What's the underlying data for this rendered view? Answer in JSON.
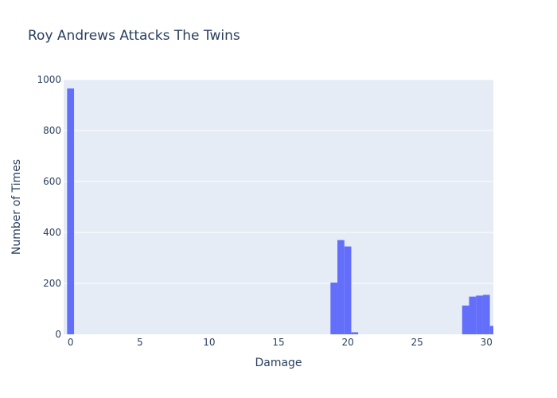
{
  "chart_data": {
    "type": "bar",
    "title": "Roy Andrews Attacks The Twins",
    "xlabel": "Damage",
    "ylabel": "Number of Times",
    "xlim": [
      -0.5,
      30.5
    ],
    "ylim": [
      0,
      1000
    ],
    "bin_width": 0.5,
    "x_ticks": [
      0,
      5,
      10,
      15,
      20,
      25,
      30
    ],
    "y_ticks": [
      0,
      200,
      400,
      600,
      800,
      1000
    ],
    "bins": [
      {
        "x": 0,
        "count": 965
      },
      {
        "x": 19,
        "count": 203
      },
      {
        "x": 19.5,
        "count": 370
      },
      {
        "x": 20,
        "count": 345
      },
      {
        "x": 20.5,
        "count": 8
      },
      {
        "x": 28.5,
        "count": 113
      },
      {
        "x": 29,
        "count": 148
      },
      {
        "x": 29.5,
        "count": 152
      },
      {
        "x": 30,
        "count": 155
      },
      {
        "x": 30.5,
        "count": 33
      }
    ],
    "bar_color": "#636efa",
    "plot_background": "#e5ecf6",
    "grid": true
  }
}
